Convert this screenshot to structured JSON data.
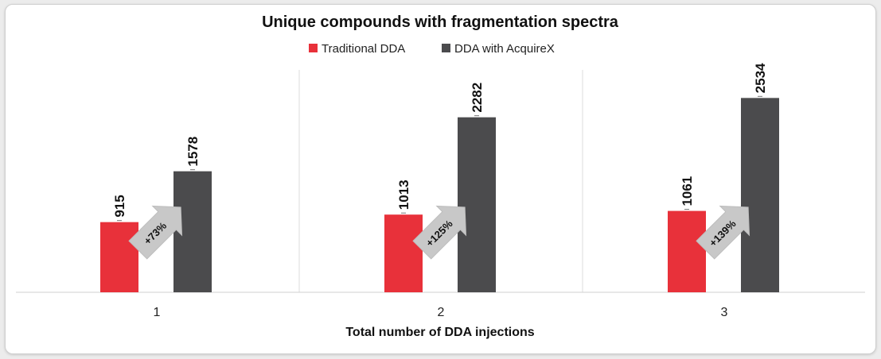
{
  "chart_data": {
    "type": "bar",
    "title": "Unique compounds with fragmentation spectra",
    "xlabel": "Total number of DDA injections",
    "ylabel": "",
    "categories": [
      "1",
      "2",
      "3"
    ],
    "series": [
      {
        "name": "Traditional DDA",
        "color": "#e8313a",
        "values": [
          915,
          1013,
          1061
        ]
      },
      {
        "name": "DDA with AcquireX",
        "color": "#4b4b4d",
        "values": [
          1578,
          2282,
          2534
        ]
      }
    ],
    "annotations": [
      "+73%",
      "+125%",
      "+139%"
    ],
    "ylim": [
      0,
      2900
    ],
    "grid": false,
    "legend_position": "top"
  }
}
